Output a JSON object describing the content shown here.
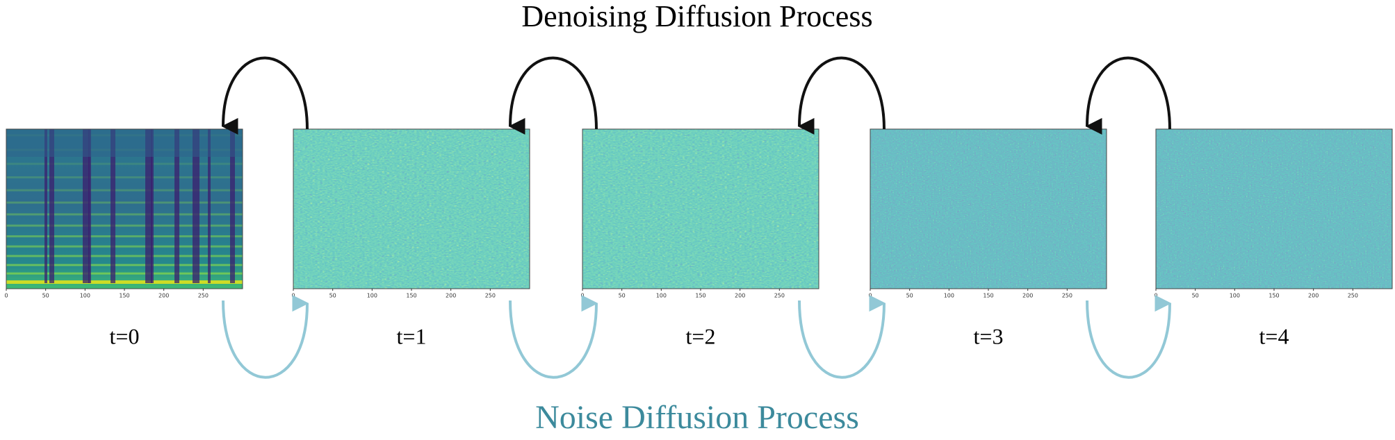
{
  "header": {
    "title": "Denoising Diffusion Process"
  },
  "footer": {
    "title": "Noise Diffusion Process"
  },
  "axis_ticks": [
    "0",
    "50",
    "100",
    "150",
    "200",
    "250"
  ],
  "panels": [
    {
      "label": "t=0"
    },
    {
      "label": "t=1"
    },
    {
      "label": "t=2"
    },
    {
      "label": "t=3"
    },
    {
      "label": "t=4"
    }
  ]
}
